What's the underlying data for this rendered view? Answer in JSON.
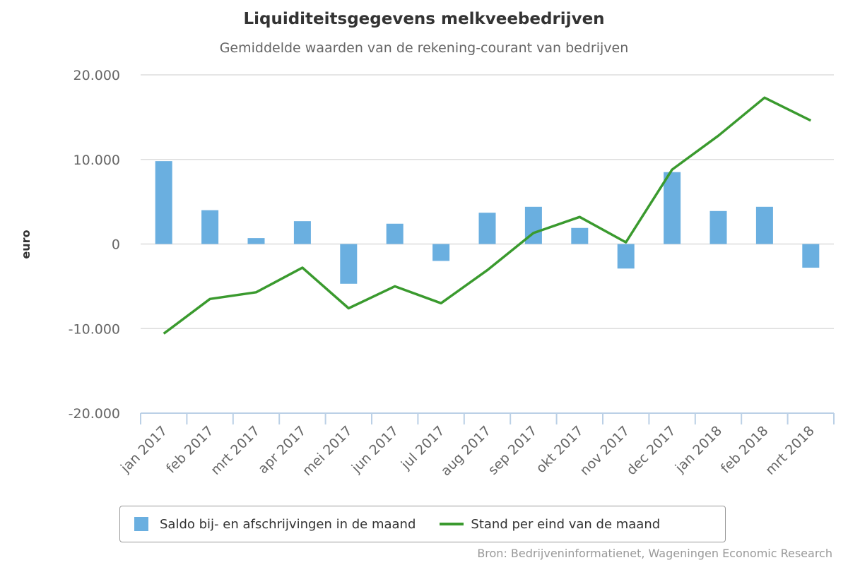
{
  "chart_data": {
    "type": "bar",
    "title": "Liquiditeitsgegevens melkveebedrijven",
    "subtitle": "Gemiddelde waarden van de rekening-courant van bedrijven",
    "ylabel": "euro",
    "ylim": [
      -20000,
      20000
    ],
    "ytick_labels": [
      "20.000",
      "10.000",
      "0",
      "-10.000",
      "-20.000"
    ],
    "categories": [
      "jan 2017",
      "feb 2017",
      "mrt 2017",
      "apr 2017",
      "mei 2017",
      "jun 2017",
      "jul 2017",
      "aug 2017",
      "sep 2017",
      "okt 2017",
      "nov 2017",
      "dec 2017",
      "jan 2018",
      "feb 2018",
      "mrt 2018"
    ],
    "series": [
      {
        "name": "Saldo bij- en afschrijvingen in de maand",
        "type": "bar",
        "color": "#6aafe0",
        "values": [
          9800,
          4000,
          700,
          2700,
          -4700,
          2400,
          -2000,
          3700,
          4400,
          1900,
          -2900,
          8500,
          3900,
          4400,
          -2800
        ]
      },
      {
        "name": "Stand per eind van de maand",
        "type": "line",
        "color": "#3a9a2e",
        "values": [
          -10600,
          -6500,
          -5700,
          -2800,
          -7600,
          -5000,
          -7000,
          -3100,
          1300,
          3200,
          200,
          8800,
          12800,
          17300,
          14600
        ]
      }
    ],
    "grid": true,
    "legend_position": "bottom"
  },
  "source": "Bron: Bedrijveninformatienet, Wageningen Economic Research"
}
